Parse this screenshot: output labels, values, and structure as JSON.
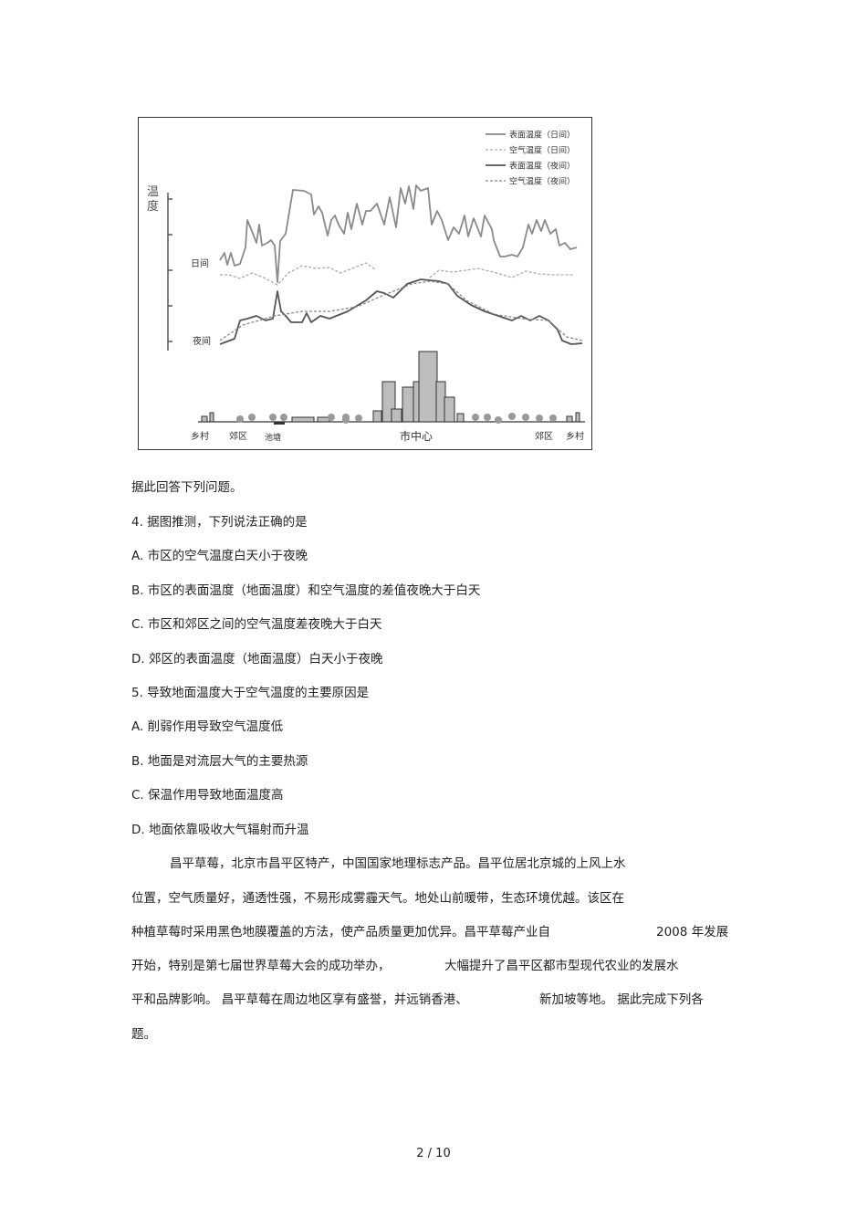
{
  "figure": {
    "legend": [
      "表面温度（日间）",
      "空气温度（日间）",
      "表面温度（夜间）",
      "空气温度（夜间）"
    ],
    "y_axis_label": "温度",
    "label_day": "日间",
    "label_night": "夜间",
    "x_labels": [
      "乡村",
      "郊区",
      "池塘",
      "市中心",
      "郊区",
      "乡村"
    ],
    "colors": {
      "day": "#8a8a8a",
      "night": "#555555",
      "building": "#bdbdbd"
    }
  },
  "intro": "据此回答下列问题。",
  "questions": [
    {
      "stem": "4.  据图推测，下列说法正确的是",
      "options": [
        "A.  市区的空气温度白天小于夜晚",
        "B.  市区的表面温度（地面温度）和空气温度的差值夜晚大于白天",
        "C.  市区和郊区之间的空气温度差夜晚大于白天",
        "D.  郊区的表面温度（地面温度）白天小于夜晚"
      ]
    },
    {
      "stem": "5.  导致地面温度大于空气温度的主要原因是",
      "options": [
        "A.  削弱作用导致空气温度低",
        "B.  地面是对流层大气的主要热源",
        "C.  保温作用导致地面温度高",
        "D.  地面依靠吸收大气辐射而升温"
      ]
    }
  ],
  "passage": [
    "昌平草莓，北京市昌平区特产，中国国家地理标志产品。昌平位居北京城的上风上水",
    "位置，空气质量好，通透性强，不易形成雾霾天气。地处山前暖带，生态环境优越。该区在",
    "种植草莓时采用黑色地膜覆盖的方法，使产品质量更加优异。昌平草莓产业自",
    "2008 年发展",
    "开始，特别是第七届世界草莓大会的成功举办，",
    "大幅提升了昌平区都市型现代农业的发展水",
    "平和品牌影响。 昌平草莓在周边地区享有盛誉，并远销香港、",
    "新加坡等地。 据此完成下列各",
    "题。"
  ],
  "page_number": "2 / 10"
}
